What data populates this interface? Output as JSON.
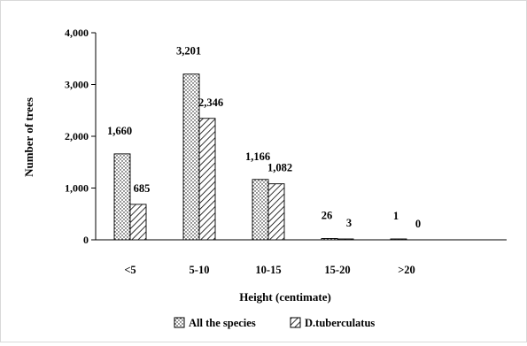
{
  "chart_data": {
    "type": "bar",
    "categories": [
      "<5",
      "5-10",
      "10-15",
      "15-20",
      ">20"
    ],
    "series": [
      {
        "name": "All the species",
        "values": [
          1660,
          3201,
          1166,
          26,
          1
        ],
        "labels": [
          "1,660",
          "3,201",
          "1,166",
          "26",
          "1"
        ],
        "pattern": "dots"
      },
      {
        "name": "D.tuberculatus",
        "values": [
          685,
          2346,
          1082,
          3,
          0
        ],
        "labels": [
          "685",
          "2,346",
          "1,082",
          "3",
          "0"
        ],
        "pattern": "diagonal-hatch"
      }
    ],
    "xlabel": "Height (centimate)",
    "ylabel": "Number of trees",
    "ylim": [
      0,
      4000
    ],
    "yticks": [
      0,
      1000,
      2000,
      3000,
      4000
    ],
    "ytick_labels": [
      "0",
      "1,000",
      "2,000",
      "3,000",
      "4,000"
    ],
    "grid": false,
    "legend_position": "bottom-center"
  }
}
